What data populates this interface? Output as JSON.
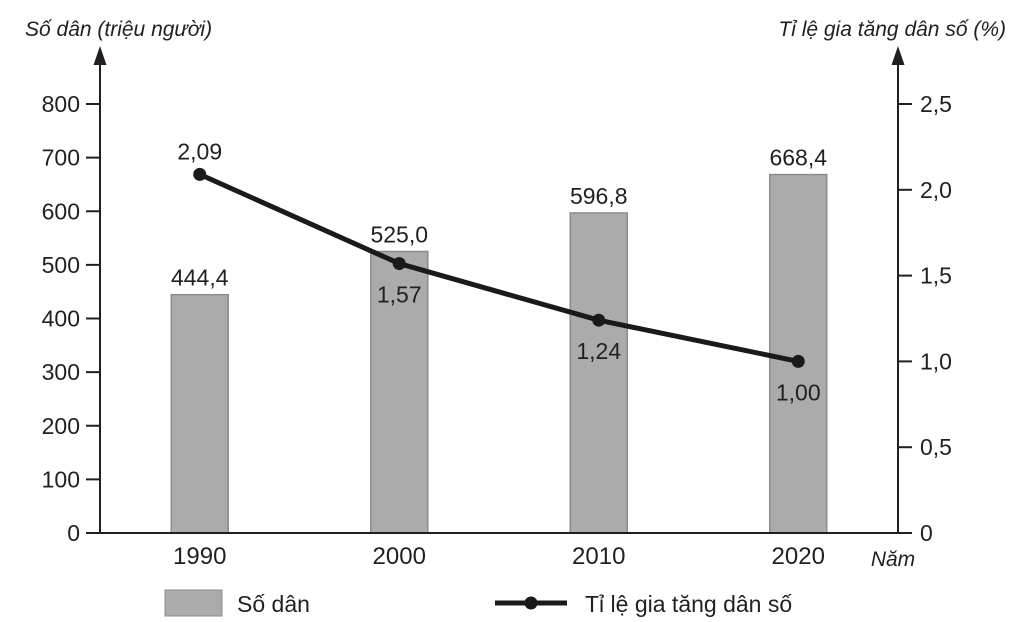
{
  "chart": {
    "left_axis_title": "Số dân (triệu người)",
    "right_axis_title": "Tỉ lệ gia tăng dân số (%)",
    "x_axis_title": "Năm",
    "legend": {
      "bar_label": "Số dân",
      "line_label": "Tỉ lệ gia tăng dân số"
    }
  },
  "chart_data": {
    "type": "bar+line",
    "categories": [
      "1990",
      "2000",
      "2010",
      "2020"
    ],
    "series": [
      {
        "name": "Số dân",
        "type": "bar",
        "axis": "left",
        "values": [
          444.4,
          525.0,
          596.8,
          668.4
        ],
        "labels": [
          "444,4",
          "525,0",
          "596,8",
          "668,4"
        ]
      },
      {
        "name": "Tỉ lệ gia tăng dân số",
        "type": "line",
        "axis": "right",
        "values": [
          2.09,
          1.57,
          1.24,
          1.0
        ],
        "labels": [
          "2,09",
          "1,57",
          "1,24",
          "1,00"
        ],
        "label_positions": [
          "above",
          "below",
          "below",
          "below"
        ]
      }
    ],
    "left_axis": {
      "title": "Số dân (triệu người)",
      "range": [
        0,
        800
      ],
      "ticks": [
        0,
        100,
        200,
        300,
        400,
        500,
        600,
        700,
        800
      ],
      "tick_labels": [
        "0",
        "100",
        "200",
        "300",
        "400",
        "500",
        "600",
        "700",
        "800"
      ]
    },
    "right_axis": {
      "title": "Tỉ lệ gia tăng dân số (%)",
      "range": [
        0,
        2.5
      ],
      "ticks": [
        0,
        0.5,
        1.0,
        1.5,
        2.0,
        2.5
      ],
      "tick_labels": [
        "0",
        "0,5",
        "1,0",
        "1,5",
        "2,0",
        "2,5"
      ]
    },
    "x_axis_label": "Năm",
    "grid": false,
    "legend_position": "bottom",
    "colors": {
      "bar_fill": "#ababab",
      "bar_stroke": "#8c8c8c",
      "line": "#1a1a1a",
      "axis": "#231f20",
      "text": "#231f20",
      "background": "#ffffff"
    }
  }
}
